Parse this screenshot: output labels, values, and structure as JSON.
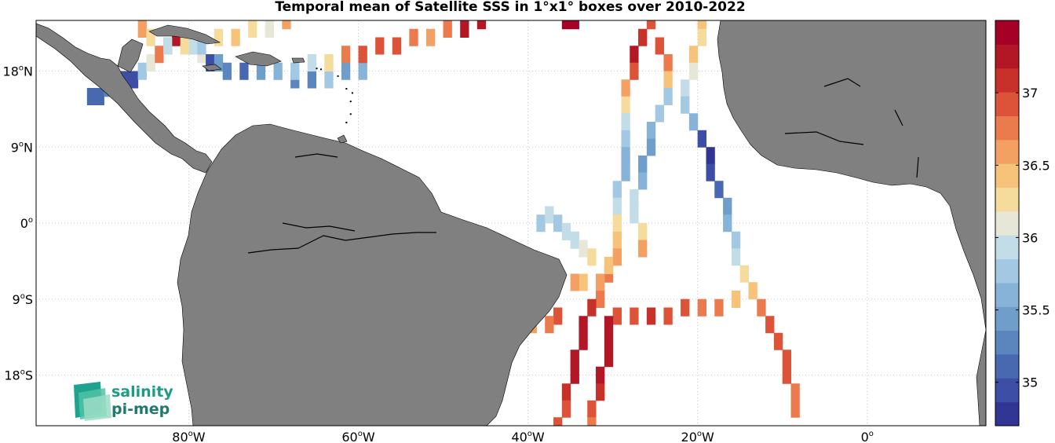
{
  "title": "Temporal mean of Satellite SSS in 1°x1° boxes over 2010-2022",
  "map": {
    "lon_labels": [
      {
        "lon": -80,
        "value": "80",
        "hemi": "W"
      },
      {
        "lon": -60,
        "value": "60",
        "hemi": "W"
      },
      {
        "lon": -40,
        "value": "40",
        "hemi": "W"
      },
      {
        "lon": -20,
        "value": "20",
        "hemi": "W"
      },
      {
        "lon": 0,
        "value": "0",
        "hemi": ""
      }
    ],
    "lat_labels": [
      {
        "lat": 18,
        "value": "18",
        "hemi": "N"
      },
      {
        "lat": 9,
        "value": "9",
        "hemi": "N"
      },
      {
        "lat": 0,
        "value": "0",
        "hemi": ""
      },
      {
        "lat": -9,
        "value": "9",
        "hemi": "S"
      },
      {
        "lat": -18,
        "value": "18",
        "hemi": "S"
      }
    ],
    "lon_range": [
      -98,
      14
    ],
    "lat_range": [
      -24,
      24
    ],
    "gridlines": "dotted",
    "land_color": "#808080",
    "ocean_color": "#ffffff"
  },
  "colorbar": {
    "min": 34.7,
    "max": 37.5,
    "ticks": [
      "35",
      "35.5",
      "36",
      "36.5",
      "37"
    ],
    "tick_values": [
      35,
      35.5,
      36,
      36.5,
      37
    ],
    "colors": [
      "#313695",
      "#3c4ea5",
      "#4868b0",
      "#5a86bd",
      "#6f9ecb",
      "#86b3d7",
      "#a3c8e3",
      "#c2dce8",
      "#e6e7d7",
      "#f5dc9c",
      "#f7c37b",
      "#f3a062",
      "#eb7a4c",
      "#dd5339",
      "#c8302a",
      "#b31726",
      "#a50026"
    ],
    "title": ""
  },
  "logo": {
    "line1": "salinity",
    "line2": "pi-mep"
  },
  "chart_data": {
    "type": "heatmap",
    "title": "Temporal mean of Satellite SSS in 1°x1° boxes over 2010-2022",
    "xlabel": "",
    "ylabel": "",
    "xlim": [
      -98,
      14
    ],
    "ylim": [
      -24,
      24
    ],
    "value_range": [
      34.7,
      37.5
    ],
    "tracks": [
      {
        "name": "",
        "points": [
          [
            -92,
            15,
            35.1
          ],
          [
            -91,
            15,
            35.1
          ],
          [
            -90,
            16,
            35.2
          ],
          [
            -89,
            16,
            35.3
          ],
          [
            -88,
            17,
            35.0
          ],
          [
            -87,
            17,
            34.9
          ],
          [
            -86,
            18,
            35.8
          ],
          [
            -85,
            19,
            36.1
          ],
          [
            -84,
            20,
            36.8
          ],
          [
            -83,
            21,
            37.0
          ],
          [
            -82,
            22,
            37.3
          ]
        ]
      },
      {
        "name": "",
        "points": [
          [
            -86,
            23,
            36.6
          ],
          [
            -85,
            22,
            36.3
          ],
          [
            -80,
            21,
            35.9
          ],
          [
            -79,
            20,
            36.1
          ],
          [
            -78,
            19,
            35.0
          ],
          [
            -77,
            19,
            35.4
          ],
          [
            -76,
            18,
            35.2
          ],
          [
            -74,
            18,
            35.1
          ],
          [
            -72,
            18,
            35.4
          ],
          [
            -70,
            18,
            35.6
          ],
          [
            -68,
            17,
            35.2
          ],
          [
            -66,
            17,
            35.3
          ],
          [
            -64,
            17,
            35.7
          ],
          [
            -62,
            18,
            35.4
          ],
          [
            -60,
            18,
            35.6
          ]
        ]
      },
      {
        "name": "",
        "points": [
          [
            -83,
            21,
            35.9
          ],
          [
            -81,
            21,
            36.2
          ],
          [
            -79,
            21,
            35.8
          ],
          [
            -77,
            22,
            36.3
          ],
          [
            -75,
            22,
            36.5
          ],
          [
            -73,
            23,
            36.2
          ],
          [
            -71,
            23,
            36.1
          ],
          [
            -69,
            24,
            36.6
          ]
        ]
      },
      {
        "name": "",
        "points": [
          [
            -68,
            18,
            35.7
          ],
          [
            -66,
            19,
            35.9
          ],
          [
            -64,
            19,
            36.2
          ],
          [
            -62,
            20,
            36.7
          ],
          [
            -60,
            20,
            36.9
          ],
          [
            -58,
            21,
            37.0
          ],
          [
            -56,
            21,
            36.9
          ],
          [
            -54,
            22,
            36.7
          ],
          [
            -52,
            22,
            36.6
          ],
          [
            -50,
            23,
            36.8
          ],
          [
            -48,
            23,
            37.2
          ],
          [
            -46,
            24,
            37.3
          ]
        ]
      },
      {
        "name": "",
        "points": [
          [
            -36,
            24,
            37.4
          ],
          [
            -35,
            24,
            37.4
          ]
        ]
      },
      {
        "name": "",
        "points": [
          [
            -26,
            24,
            37.0
          ],
          [
            -27,
            22,
            37.1
          ],
          [
            -28,
            20,
            37.2
          ],
          [
            -28,
            18,
            36.9
          ],
          [
            -29,
            16,
            36.6
          ],
          [
            -29,
            14,
            36.2
          ],
          [
            -29,
            12,
            35.9
          ],
          [
            -29,
            10,
            35.7
          ],
          [
            -29,
            8,
            35.6
          ],
          [
            -29,
            6,
            35.6
          ],
          [
            -30,
            4,
            35.8
          ],
          [
            -30,
            2,
            36.0
          ],
          [
            -30,
            0,
            36.3
          ],
          [
            -30,
            -2,
            36.5
          ],
          [
            -30,
            -4,
            36.6
          ],
          [
            -31,
            -6,
            36.7
          ],
          [
            -32,
            -7,
            36.6
          ],
          [
            -34,
            -7,
            36.5
          ],
          [
            -35,
            -7,
            36.6
          ]
        ]
      },
      {
        "name": "",
        "points": [
          [
            -25,
            21,
            36.9
          ],
          [
            -24,
            19,
            36.7
          ],
          [
            -24,
            17,
            36.4
          ],
          [
            -24,
            15,
            35.8
          ],
          [
            -25,
            13,
            35.8
          ],
          [
            -26,
            11,
            35.6
          ],
          [
            -26,
            9,
            35.4
          ],
          [
            -27,
            7,
            35.5
          ],
          [
            -27,
            5,
            35.6
          ],
          [
            -28,
            3,
            35.9
          ],
          [
            -28,
            1,
            36.0
          ],
          [
            -27,
            -1,
            36.3
          ],
          [
            -27,
            -3,
            36.6
          ]
        ]
      },
      {
        "name": "",
        "points": [
          [
            -20,
            24,
            36.4
          ],
          [
            -20,
            22,
            36.2
          ],
          [
            -21,
            20,
            36.4
          ],
          [
            -21,
            18,
            36.1
          ],
          [
            -22,
            16,
            35.9
          ],
          [
            -22,
            14,
            35.8
          ],
          [
            -21,
            12,
            35.6
          ],
          [
            -20,
            10,
            35.0
          ],
          [
            -19,
            8,
            34.8
          ],
          [
            -19,
            6,
            34.9
          ],
          [
            -18,
            4,
            35.1
          ],
          [
            -17,
            2,
            35.4
          ],
          [
            -17,
            0,
            35.6
          ],
          [
            -16,
            -2,
            35.8
          ],
          [
            -16,
            -4,
            36.0
          ],
          [
            -15,
            -6,
            36.3
          ],
          [
            -14,
            -8,
            36.5
          ],
          [
            -13,
            -10,
            36.7
          ],
          [
            -12,
            -12,
            36.9
          ],
          [
            -11,
            -14,
            37.0
          ],
          [
            -10,
            -16,
            37.0
          ],
          [
            -10,
            -18,
            36.9
          ],
          [
            -9,
            -20,
            36.8
          ],
          [
            -9,
            -22,
            36.7
          ]
        ]
      },
      {
        "name": "",
        "points": [
          [
            -39,
            0,
            35.8
          ],
          [
            -38,
            1,
            35.9
          ],
          [
            -37,
            0,
            35.8
          ],
          [
            -36,
            -1,
            35.9
          ],
          [
            -35,
            -2,
            36.0
          ],
          [
            -34,
            -3,
            36.1
          ],
          [
            -33,
            -4,
            36.2
          ],
          [
            -31,
            -5,
            36.4
          ]
        ]
      },
      {
        "name": "",
        "points": [
          [
            -32,
            -9,
            36.7
          ],
          [
            -30,
            -11,
            36.9
          ],
          [
            -28,
            -11,
            37.0
          ],
          [
            -26,
            -11,
            37.1
          ],
          [
            -24,
            -11,
            37.0
          ],
          [
            -22,
            -10,
            36.9
          ],
          [
            -20,
            -10,
            36.8
          ],
          [
            -18,
            -10,
            36.7
          ],
          [
            -16,
            -9,
            36.5
          ]
        ]
      },
      {
        "name": "",
        "points": [
          [
            -33,
            -10,
            37.1
          ],
          [
            -34,
            -12,
            37.2
          ],
          [
            -34,
            -14,
            37.3
          ],
          [
            -35,
            -16,
            37.2
          ],
          [
            -35,
            -18,
            37.2
          ],
          [
            -36,
            -20,
            37.1
          ],
          [
            -36,
            -22,
            37.0
          ],
          [
            -37,
            -24,
            36.9
          ]
        ]
      },
      {
        "name": "",
        "points": [
          [
            -31,
            -12,
            37.2
          ],
          [
            -31,
            -14,
            37.3
          ],
          [
            -31,
            -16,
            37.3
          ],
          [
            -32,
            -18,
            37.2
          ],
          [
            -32,
            -20,
            37.1
          ],
          [
            -33,
            -22,
            37.0
          ],
          [
            -33,
            -24,
            36.8
          ]
        ]
      },
      {
        "name": "",
        "points": [
          [
            -37,
            -11,
            37.0
          ],
          [
            -38,
            -12,
            36.8
          ],
          [
            -40,
            -12,
            36.6
          ]
        ]
      }
    ]
  }
}
